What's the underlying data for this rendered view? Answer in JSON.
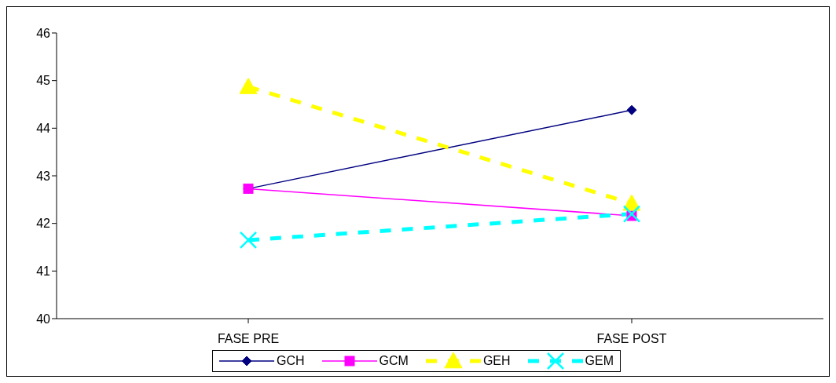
{
  "chart_data": {
    "type": "line",
    "categories": [
      "FASE PRE",
      "FASE POST"
    ],
    "series": [
      {
        "name": "GCH",
        "color": "#000080",
        "values": [
          42.73,
          44.38
        ],
        "marker": "diamond",
        "line_style": "solid"
      },
      {
        "name": "GCM",
        "color": "#ff00ff",
        "values": [
          42.73,
          42.16
        ],
        "marker": "square",
        "line_style": "solid"
      },
      {
        "name": "GEH",
        "color": "#ffff00",
        "values": [
          44.87,
          42.42
        ],
        "marker": "triangle",
        "line_style": "dashed"
      },
      {
        "name": "GEM",
        "color": "#00ffff",
        "values": [
          41.65,
          42.2
        ],
        "marker": "cross",
        "line_style": "dashed"
      }
    ],
    "ylim": [
      40,
      46
    ],
    "yticks": [
      40,
      41,
      42,
      43,
      44,
      45,
      46
    ],
    "grid": false,
    "legend": "bottom"
  }
}
